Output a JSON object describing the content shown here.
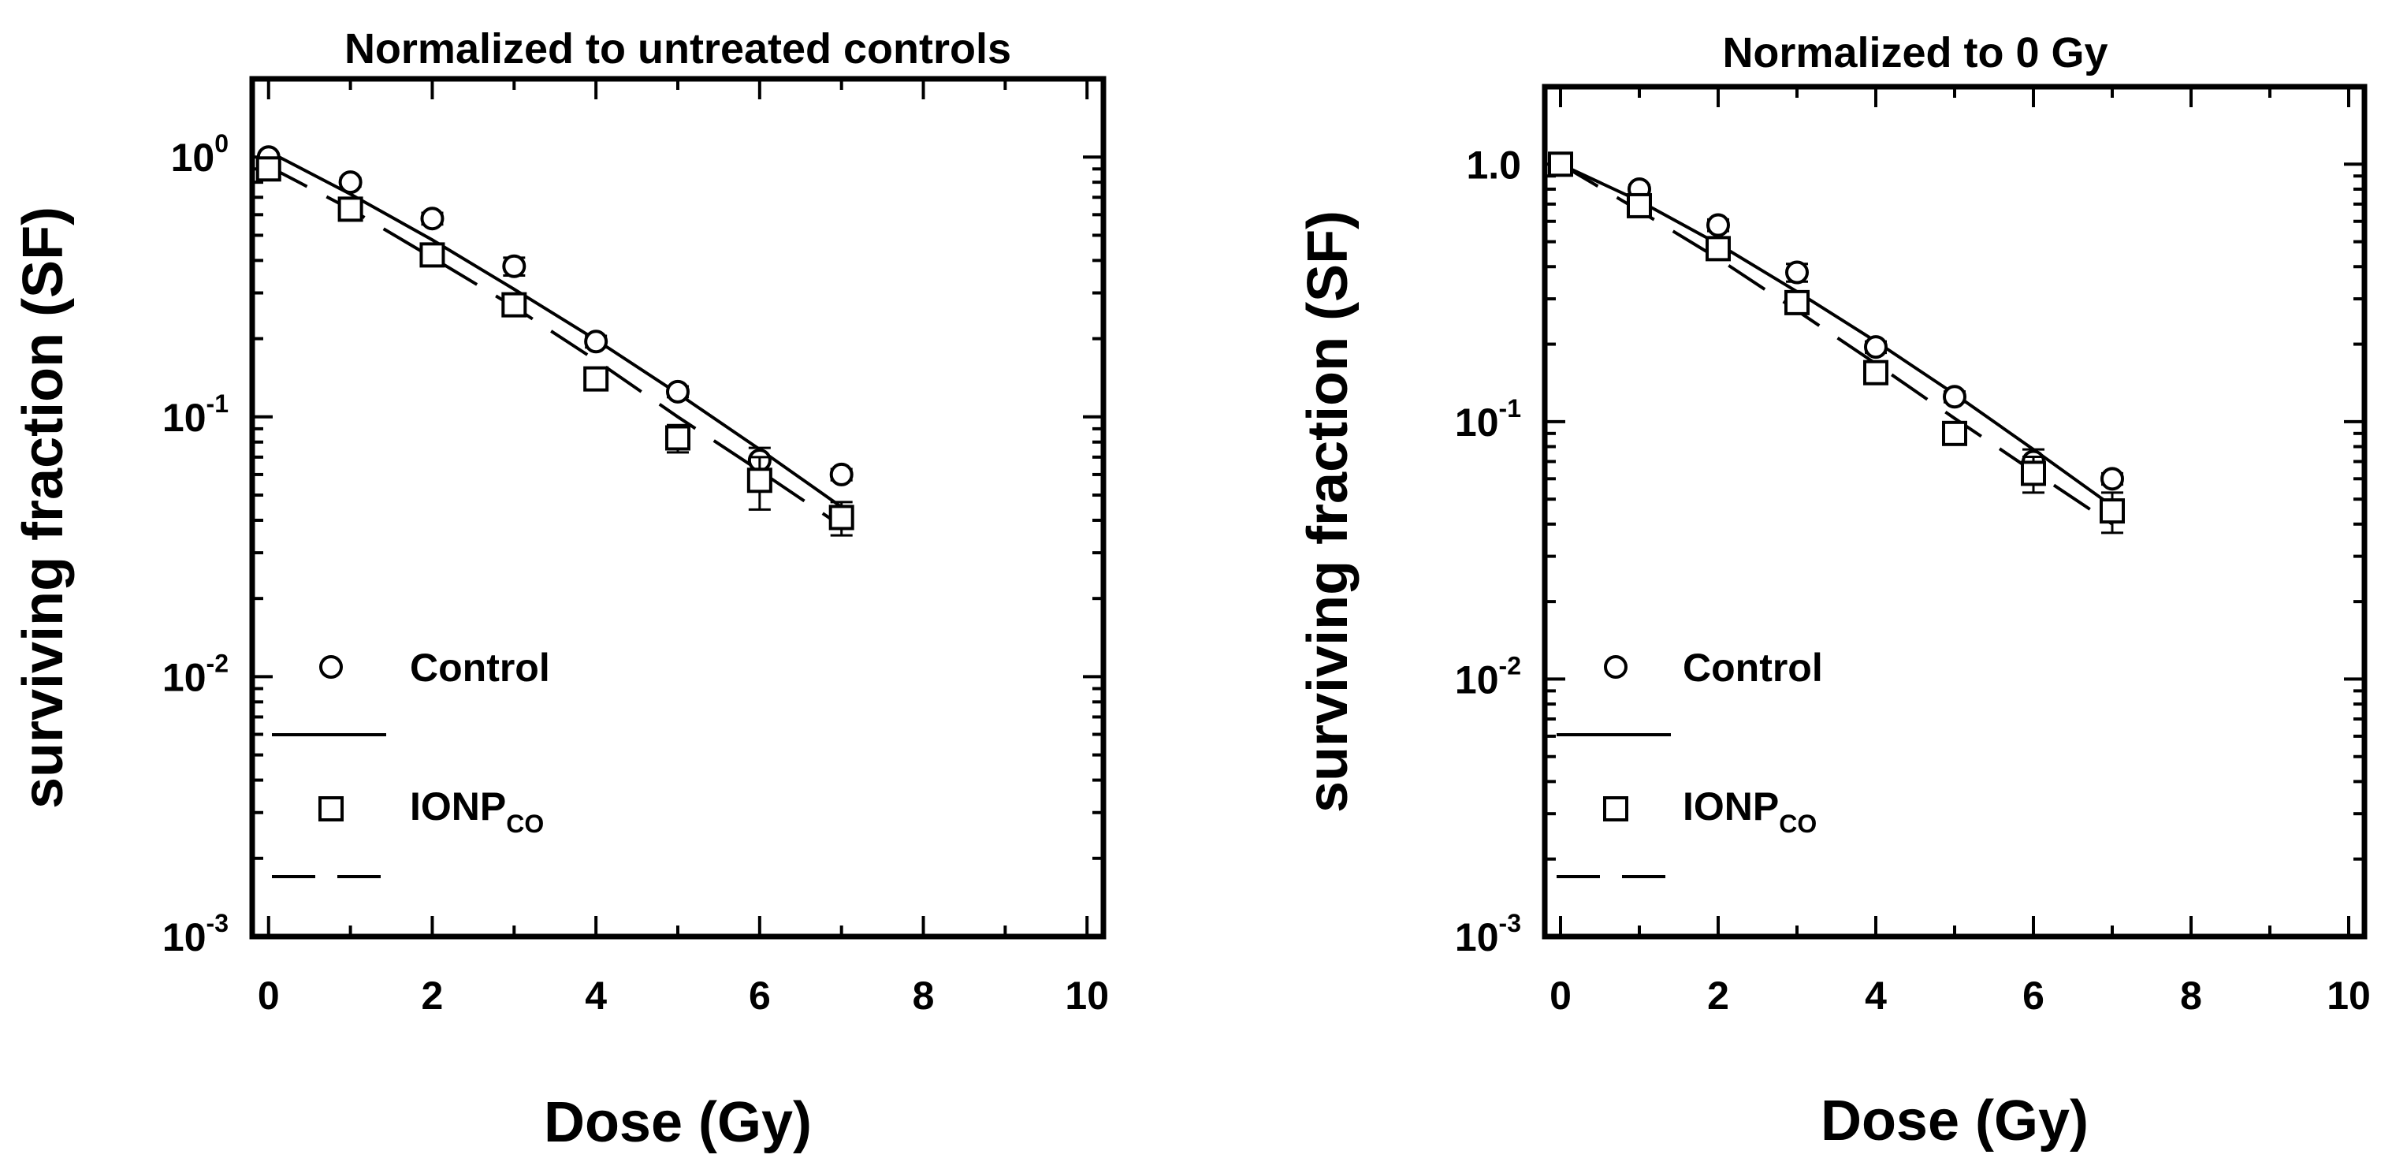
{
  "chart_data": [
    {
      "type": "scatter",
      "title": "Normalized to untreated controls",
      "xlabel": "Dose (Gy)",
      "ylabel": "surviving fraction (SF)",
      "xlim": [
        -0.2,
        10.2
      ],
      "ylim": [
        0.001,
        2.0
      ],
      "yscale": "log",
      "x_ticks": [
        0,
        2,
        4,
        6,
        8,
        10
      ],
      "x_tick_labels": [
        "0",
        "2",
        "4",
        "6",
        "8",
        "10"
      ],
      "y_ticks": [
        1,
        0.1,
        0.01,
        0.001
      ],
      "y_tick_labels": [
        {
          "base": "10",
          "exp": "0"
        },
        {
          "base": "10",
          "exp": "-1"
        },
        {
          "base": "10",
          "exp": "-2"
        },
        {
          "base": "10",
          "exp": "-3"
        }
      ],
      "legend_position": "lower-left",
      "series": [
        {
          "name": "Control",
          "marker": "circle",
          "x": [
            0,
            1,
            2,
            3,
            4,
            5,
            6,
            7
          ],
          "y": [
            1.0,
            0.8,
            0.58,
            0.38,
            0.195,
            0.125,
            0.068,
            0.06
          ],
          "err": [
            0.02,
            0.03,
            0.03,
            0.03,
            0.01,
            0.006,
            0.008,
            0.003
          ],
          "fit": {
            "style": "solid",
            "x": [
              0,
              1,
              2,
              3,
              4,
              5,
              6,
              7
            ],
            "y": [
              1.05,
              0.72,
              0.48,
              0.31,
              0.198,
              0.123,
              0.075,
              0.045
            ]
          }
        },
        {
          "name": "IONP",
          "name_sub": "CO",
          "marker": "square",
          "x": [
            0,
            1,
            2,
            3,
            4,
            5,
            6,
            7
          ],
          "y": [
            0.9,
            0.63,
            0.42,
            0.27,
            0.14,
            0.083,
            0.057,
            0.041
          ],
          "err": [
            0.03,
            0.02,
            0.02,
            0.025,
            0.01,
            0.01,
            0.013,
            0.006
          ],
          "fit": {
            "style": "dashed",
            "x": [
              0,
              1,
              2,
              3,
              4,
              5,
              6,
              7
            ],
            "y": [
              0.92,
              0.63,
              0.41,
              0.265,
              0.165,
              0.1,
              0.062,
              0.038
            ]
          }
        }
      ]
    },
    {
      "type": "scatter",
      "title": "Normalized to 0 Gy",
      "xlabel": "Dose (Gy)",
      "ylabel": "surviving fraction (SF)",
      "xlim": [
        -0.2,
        10.2
      ],
      "ylim": [
        0.001,
        2.0
      ],
      "yscale": "log",
      "x_ticks": [
        0,
        2,
        4,
        6,
        8,
        10
      ],
      "x_tick_labels": [
        "0",
        "2",
        "4",
        "6",
        "8",
        "10"
      ],
      "y_ticks": [
        1,
        0.1,
        0.01,
        0.001
      ],
      "y_tick_labels": [
        {
          "base": "1.0",
          "exp": ""
        },
        {
          "base": "10",
          "exp": "-1"
        },
        {
          "base": "10",
          "exp": "-2"
        },
        {
          "base": "10",
          "exp": "-3"
        }
      ],
      "legend_position": "lower-left",
      "series": [
        {
          "name": "Control",
          "marker": "circle",
          "x": [
            0,
            1,
            2,
            3,
            4,
            5,
            6,
            7
          ],
          "y": [
            1.0,
            0.8,
            0.58,
            0.38,
            0.195,
            0.125,
            0.07,
            0.06
          ],
          "err": [
            0.01,
            0.03,
            0.03,
            0.03,
            0.01,
            0.006,
            0.008,
            0.003
          ],
          "fit": {
            "style": "solid",
            "x": [
              0,
              1,
              2,
              3,
              4,
              5,
              6,
              7
            ],
            "y": [
              1.0,
              0.72,
              0.49,
              0.32,
              0.205,
              0.128,
              0.078,
              0.047
            ]
          }
        },
        {
          "name": "IONP",
          "name_sub": "CO",
          "marker": "square",
          "x": [
            0,
            1,
            2,
            3,
            4,
            5,
            6,
            7
          ],
          "y": [
            1.0,
            0.69,
            0.47,
            0.29,
            0.155,
            0.09,
            0.063,
            0.045
          ],
          "err": [
            0.02,
            0.05,
            0.04,
            0.02,
            0.01,
            0.007,
            0.01,
            0.008
          ],
          "fit": {
            "style": "dashed",
            "x": [
              0,
              1,
              2,
              3,
              4,
              5,
              6,
              7
            ],
            "y": [
              1.0,
              0.66,
              0.43,
              0.27,
              0.168,
              0.103,
              0.064,
              0.04
            ]
          }
        }
      ]
    }
  ]
}
